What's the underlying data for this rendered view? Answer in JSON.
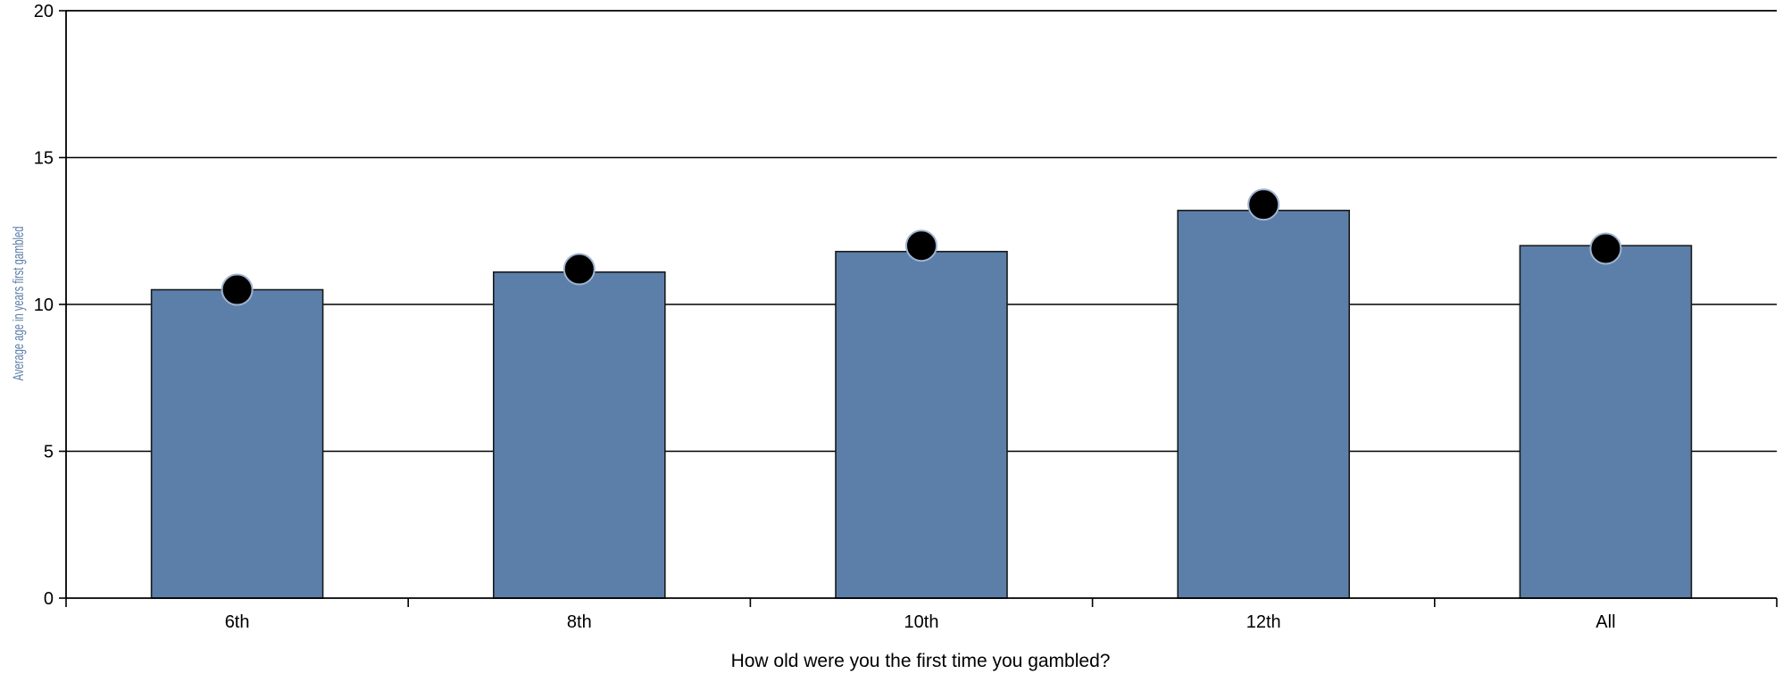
{
  "chart_data": {
    "type": "bar",
    "categories": [
      "6th",
      "8th",
      "10th",
      "12th",
      "All"
    ],
    "series": [
      {
        "values": [
          10.5,
          11.1,
          11.8,
          13.2,
          12.0
        ]
      },
      {
        "values": [
          10.5,
          11.2,
          12.0,
          13.4,
          11.9
        ]
      }
    ],
    "xlabel": "How old were you the first time you gambled?",
    "ylabel": "Average age in years first gambled",
    "ylim": [
      0,
      20
    ],
    "yticks": [
      0,
      5,
      10,
      15,
      20
    ],
    "grid": true,
    "colors": {
      "bar_fill": "#5b7fa8",
      "bar_stroke": "#1a1a1a",
      "marker_fill": "#000000",
      "marker_stroke": "#9fb3d0",
      "ylabel": "#5b7fa8"
    }
  }
}
